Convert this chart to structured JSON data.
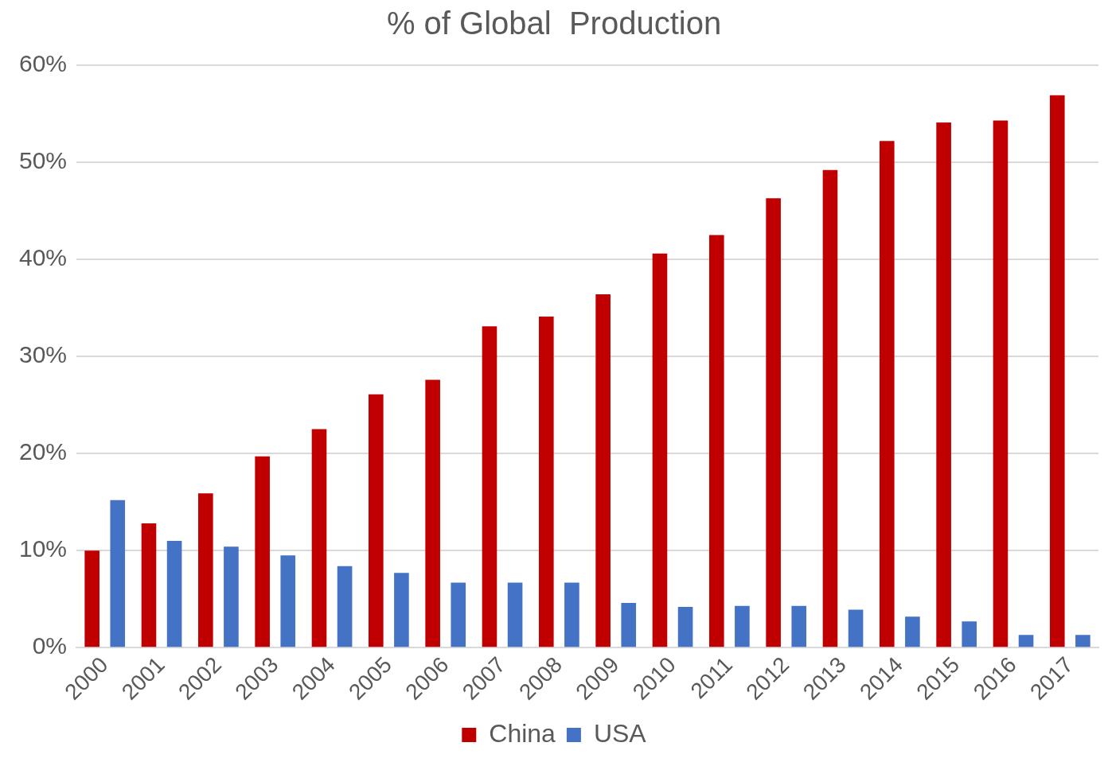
{
  "chart_data": {
    "type": "bar",
    "title": "% of Global  Production",
    "categories": [
      "2000",
      "2001",
      "2002",
      "2003",
      "2004",
      "2005",
      "2006",
      "2007",
      "2008",
      "2009",
      "2010",
      "2011",
      "2012",
      "2013",
      "2014",
      "2015",
      "2016",
      "2017"
    ],
    "series": [
      {
        "name": "China",
        "color": "#c00000",
        "values": [
          10,
          12.8,
          15.9,
          19.7,
          22.5,
          26.1,
          27.6,
          33.1,
          34.1,
          36.4,
          40.6,
          42.5,
          46.3,
          49.2,
          52.2,
          54.1,
          54.3,
          56.9
        ]
      },
      {
        "name": "USA",
        "color": "#4472c4",
        "values": [
          15.2,
          11.0,
          10.4,
          9.5,
          8.4,
          7.7,
          6.7,
          6.7,
          6.7,
          4.6,
          4.2,
          4.3,
          4.3,
          3.9,
          3.2,
          2.7,
          1.3,
          1.3
        ]
      }
    ],
    "ylim": [
      0,
      60
    ],
    "yticks": [
      {
        "value": 0,
        "label": "0%"
      },
      {
        "value": 10,
        "label": "10%"
      },
      {
        "value": 20,
        "label": "20%"
      },
      {
        "value": 30,
        "label": "30%"
      },
      {
        "value": 40,
        "label": "40%"
      },
      {
        "value": 50,
        "label": "50%"
      },
      {
        "value": 60,
        "label": "60%"
      }
    ],
    "grid": "y",
    "legend": "bottom"
  }
}
